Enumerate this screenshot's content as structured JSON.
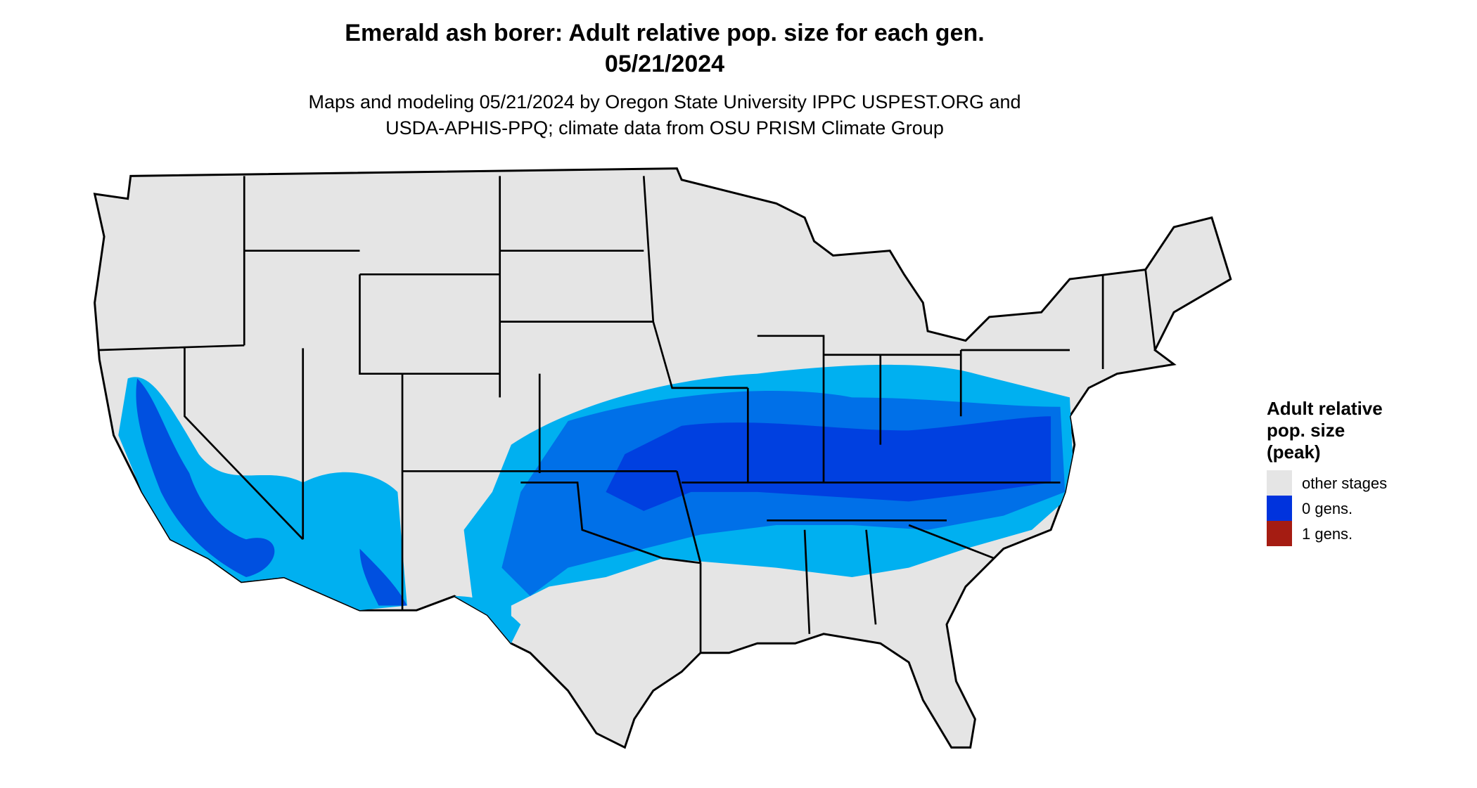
{
  "header": {
    "title": "Emerald ash borer: Adult relative pop. size for each gen.",
    "date": "05/21/2024",
    "subtitle_lines": [
      "Maps and modeling 05/21/2024 by Oregon State University IPPC USPEST.ORG and",
      "USDA-APHIS-PPQ; climate data from OSU PRISM Climate Group"
    ]
  },
  "legend": {
    "title_lines": [
      "Adult relative",
      "pop. size",
      "(peak)"
    ],
    "items": [
      {
        "label": "other stages",
        "color": "#e5e5e5"
      },
      {
        "label": "0 gens.",
        "color": "#0033dd"
      },
      {
        "label": "1 gens.",
        "color": "#a51c12"
      }
    ]
  }
}
